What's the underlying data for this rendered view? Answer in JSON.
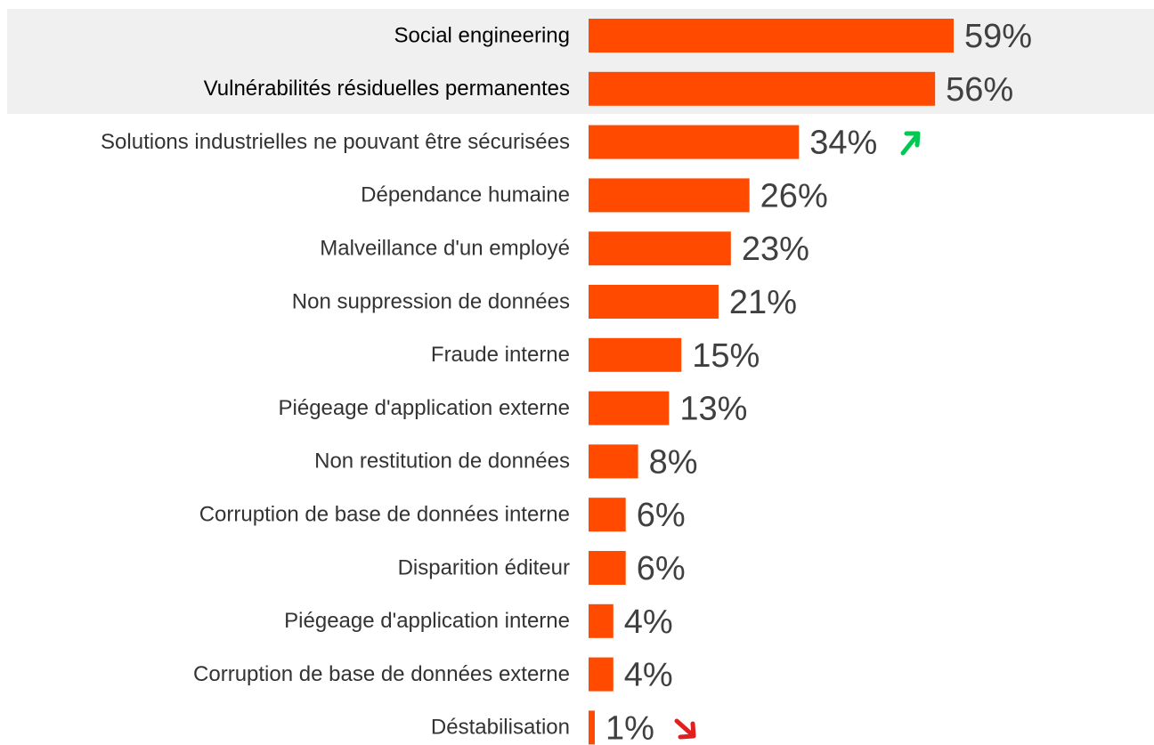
{
  "chart_data": {
    "type": "bar",
    "orientation": "horizontal",
    "categories": [
      "Social engineering",
      "Vulnérabilités résiduelles permanentes",
      "Solutions industrielles ne pouvant être sécurisées",
      "Dépendance humaine",
      "Malveillance d'un employé",
      "Non suppression de données",
      "Fraude interne",
      "Piégeage d'application externe",
      "Non restitution de données",
      "Corruption de base de données interne",
      "Disparition éditeur",
      "Piégeage d'application interne",
      "Corruption de base de données externe",
      "Déstabilisation"
    ],
    "values": [
      59,
      56,
      34,
      26,
      23,
      21,
      15,
      13,
      8,
      6,
      6,
      4,
      4,
      1
    ],
    "value_labels": [
      "59%",
      "56%",
      "34%",
      "26%",
      "23%",
      "21%",
      "15%",
      "13%",
      "8%",
      "6%",
      "6%",
      "4%",
      "4%",
      "1%"
    ],
    "color": "#ff4a00"
  }
}
